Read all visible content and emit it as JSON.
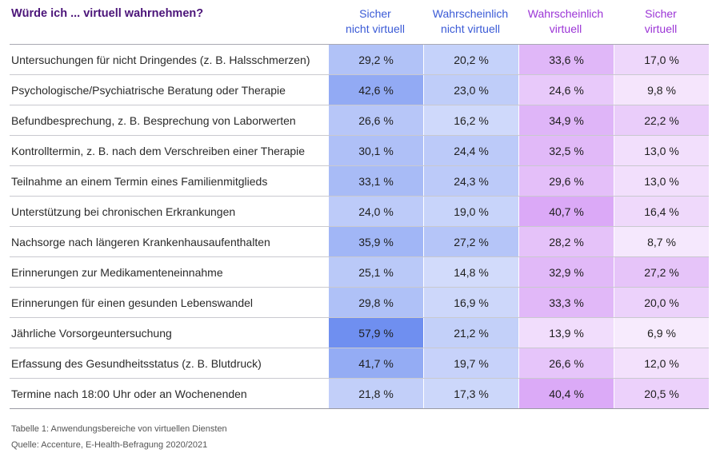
{
  "chart_data": {
    "type": "table",
    "title": "Würde ich ... virtuell wahrnehmen?",
    "columns": [
      {
        "line1": "Sicher",
        "line2": "nicht virtuell",
        "group": "blue"
      },
      {
        "line1": "Wahrscheinlich",
        "line2": "nicht virtuell",
        "group": "blue"
      },
      {
        "line1": "Wahrscheinlich",
        "line2": "virtuell",
        "group": "purple"
      },
      {
        "line1": "Sicher",
        "line2": "virtuell",
        "group": "purple"
      }
    ],
    "rows": [
      {
        "label": "Untersuchungen für nicht Dringendes (z. B. Halsschmerzen)",
        "values": [
          29.2,
          20.2,
          33.6,
          17.0
        ]
      },
      {
        "label": "Psychologische/Psychiatrische Beratung oder Therapie",
        "values": [
          42.6,
          23.0,
          24.6,
          9.8
        ]
      },
      {
        "label": "Befundbesprechung, z. B. Besprechung von Laborwerten",
        "values": [
          26.6,
          16.2,
          34.9,
          22.2
        ]
      },
      {
        "label": "Kontrolltermin, z. B. nach dem Verschreiben einer Therapie",
        "values": [
          30.1,
          24.4,
          32.5,
          13.0
        ]
      },
      {
        "label": "Teilnahme an einem Termin eines Familienmitglieds",
        "values": [
          33.1,
          24.3,
          29.6,
          13.0
        ]
      },
      {
        "label": "Unterstützung bei chronischen Erkrankungen",
        "values": [
          24.0,
          19.0,
          40.7,
          16.4
        ]
      },
      {
        "label": "Nachsorge nach längeren Krankenhausaufenthalten",
        "values": [
          35.9,
          27.2,
          28.2,
          8.7
        ]
      },
      {
        "label": "Erinnerungen zur Medikamenteneinnahme",
        "values": [
          25.1,
          14.8,
          32.9,
          27.2
        ]
      },
      {
        "label": "Erinnerungen für einen gesunden Lebenswandel",
        "values": [
          29.8,
          16.9,
          33.3,
          20.0
        ]
      },
      {
        "label": "Jährliche Vorsorgeuntersuchung",
        "values": [
          57.9,
          21.2,
          13.9,
          6.9
        ]
      },
      {
        "label": "Erfassung des Gesundheitsstatus (z. B. Blutdruck)",
        "values": [
          41.7,
          19.7,
          26.6,
          12.0
        ]
      },
      {
        "label": "Termine nach 18:00 Uhr oder an Wochenenden",
        "values": [
          21.8,
          17.3,
          40.4,
          20.5
        ]
      }
    ],
    "value_suffix": " %",
    "colors": {
      "title": "#4b1479",
      "header_blue": "#3a5ad6",
      "header_purple": "#9b34d6",
      "blue_light": "#e4e9fd",
      "blue_dark": "#6f8ff0",
      "purple_light": "#f7ebfd",
      "purple_dark": "#cc88f4"
    }
  },
  "footnote": {
    "line1": "Tabelle 1: Anwendungsbereiche von virtuellen Diensten",
    "line2": "Quelle: Accenture, E-Health-Befragung 2020/2021"
  }
}
